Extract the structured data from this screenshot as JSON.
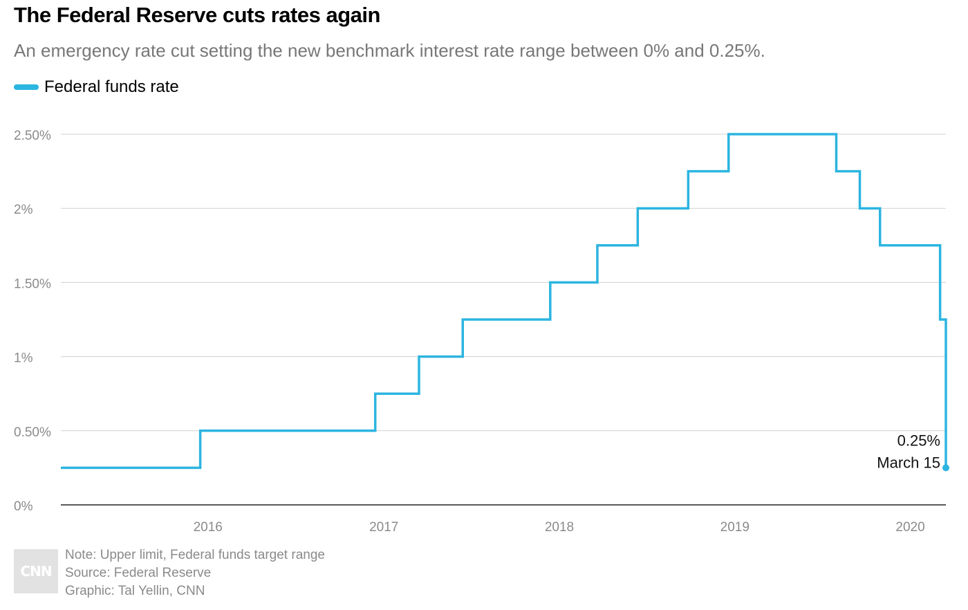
{
  "title": "The Federal Reserve cuts rates again",
  "subtitle": "An emergency rate cut setting the new benchmark interest rate range between 0% and 0.25%.",
  "legend": {
    "label": "Federal funds rate",
    "color": "#2cb5e0"
  },
  "annotation": {
    "value": "0.25%",
    "date": "March 15"
  },
  "footer": {
    "logo_text": "CNN",
    "note": "Note: Upper limit, Federal funds target range",
    "source": "Source: Federal Reserve",
    "graphic": "Graphic: Tal Yellin, CNN"
  },
  "chart_data": {
    "type": "line",
    "step": true,
    "title": "The Federal Reserve cuts rates again",
    "subtitle": "An emergency rate cut setting the new benchmark interest rate range between 0% and 0.25%.",
    "xlabel": "",
    "ylabel": "",
    "xlim": [
      "2015-03-01",
      "2020-03-15"
    ],
    "ylim": [
      0,
      2.5
    ],
    "y_ticks": [
      {
        "value": 0,
        "label": "0%"
      },
      {
        "value": 0.5,
        "label": "0.50%"
      },
      {
        "value": 1,
        "label": "1%"
      },
      {
        "value": 1.5,
        "label": "1.50%"
      },
      {
        "value": 2,
        "label": "2%"
      },
      {
        "value": 2.5,
        "label": "2.50%"
      }
    ],
    "x_ticks": [
      {
        "value": "2016-01-01",
        "label": "2016"
      },
      {
        "value": "2017-01-01",
        "label": "2017"
      },
      {
        "value": "2018-01-01",
        "label": "2018"
      },
      {
        "value": "2019-01-01",
        "label": "2019"
      },
      {
        "value": "2020-01-01",
        "label": "2020"
      }
    ],
    "grid": true,
    "legend_position": "top-left",
    "series": [
      {
        "name": "Federal funds rate",
        "color": "#2cb5e0",
        "points": [
          {
            "x": "2015-03-01",
            "y": 0.25
          },
          {
            "x": "2015-12-16",
            "y": 0.5
          },
          {
            "x": "2016-12-14",
            "y": 0.75
          },
          {
            "x": "2017-03-15",
            "y": 1.0
          },
          {
            "x": "2017-06-14",
            "y": 1.25
          },
          {
            "x": "2017-12-13",
            "y": 1.5
          },
          {
            "x": "2018-03-21",
            "y": 1.75
          },
          {
            "x": "2018-06-13",
            "y": 2.0
          },
          {
            "x": "2018-09-26",
            "y": 2.25
          },
          {
            "x": "2018-12-19",
            "y": 2.5
          },
          {
            "x": "2019-07-31",
            "y": 2.25
          },
          {
            "x": "2019-09-18",
            "y": 2.0
          },
          {
            "x": "2019-10-30",
            "y": 1.75
          },
          {
            "x": "2020-03-03",
            "y": 1.25
          },
          {
            "x": "2020-03-15",
            "y": 0.25
          }
        ]
      }
    ]
  }
}
